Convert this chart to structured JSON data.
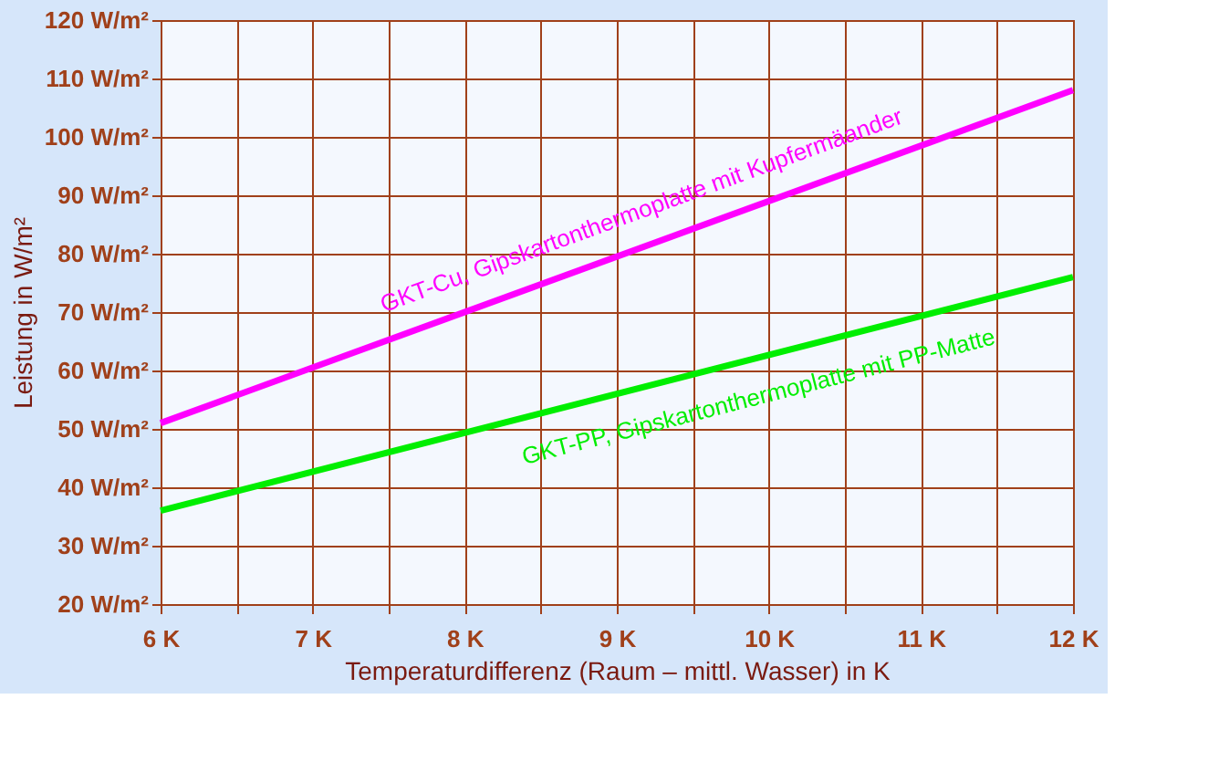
{
  "chart_data": {
    "type": "line",
    "xlabel": "Temperaturdifferenz (Raum – mittl. Wasser) in K",
    "ylabel": "Leistung in W/m²",
    "x": [
      6,
      12
    ],
    "series": [
      {
        "color": "#ff00ff",
        "values": [
          51,
          108
        ]
      },
      {
        "color": "#00ee00",
        "values": [
          36,
          76
        ]
      }
    ],
    "annotations": [
      "GKT-Cu, Gipskartonthermoplatte mit Kupfermäander",
      "GKT-PP, Gipskartonthermoplatte mit PP-Matte"
    ],
    "xlim": [
      6,
      12
    ],
    "xticks": [
      {
        "value": 6,
        "label": "6 K"
      },
      {
        "value": 6.5,
        "label": null
      },
      {
        "value": 7,
        "label": "7 K"
      },
      {
        "value": 7.5,
        "label": null
      },
      {
        "value": 8,
        "label": "8 K"
      },
      {
        "value": 8.5,
        "label": null
      },
      {
        "value": 9,
        "label": "9 K"
      },
      {
        "value": 9.5,
        "label": null
      },
      {
        "value": 10,
        "label": "10 K"
      },
      {
        "value": 10.5,
        "label": null
      },
      {
        "value": 11,
        "label": "11 K"
      },
      {
        "value": 11.5,
        "label": null
      },
      {
        "value": 12,
        "label": "12 K"
      }
    ],
    "ylim": [
      20,
      120
    ],
    "yticks": [
      {
        "value": 20,
        "label": "20 W/m²"
      },
      {
        "value": 30,
        "label": "30 W/m²"
      },
      {
        "value": 40,
        "label": "40 W/m²"
      },
      {
        "value": 50,
        "label": "50 W/m²"
      },
      {
        "value": 60,
        "label": "60 W/m²"
      },
      {
        "value": 70,
        "label": "70 W/m²"
      },
      {
        "value": 80,
        "label": "80 W/m²"
      },
      {
        "value": 90,
        "label": "90 W/m²"
      },
      {
        "value": 100,
        "label": "100 W/m²"
      },
      {
        "value": 110,
        "label": "110 W/m²"
      },
      {
        "value": 120,
        "label": "120 W/m²"
      }
    ],
    "grid": true,
    "legend": false,
    "marker": "none",
    "line_style": "solid"
  }
}
